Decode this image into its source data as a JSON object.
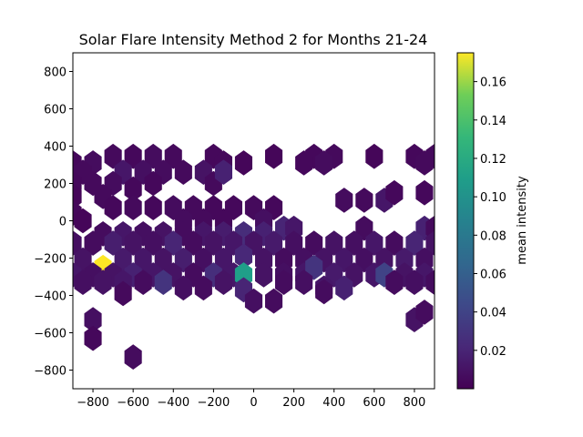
{
  "chart_data": {
    "type": "heatmap",
    "subtype": "hexbin",
    "title": "Solar Flare Intensity Method 2 for Months 21-24",
    "xlabel": "",
    "ylabel": "",
    "xlim": [
      -900,
      900
    ],
    "ylim": [
      -900,
      900
    ],
    "xticks": [
      -800,
      -600,
      -400,
      -200,
      0,
      200,
      400,
      600,
      800
    ],
    "yticks": [
      -800,
      -600,
      -400,
      -200,
      0,
      200,
      400,
      600,
      800
    ],
    "grid": false,
    "colormap": "viridis",
    "colorbar": {
      "label": "mean intensity",
      "min": 0.0,
      "max": 0.175,
      "ticks": [
        0.02,
        0.04,
        0.06,
        0.08,
        0.1,
        0.12,
        0.14,
        0.16
      ],
      "tick_labels": [
        "0.02",
        "0.04",
        "0.06",
        "0.08",
        "0.10",
        "0.12",
        "0.14",
        "0.16"
      ]
    },
    "hex_size": 50,
    "cells": [
      [
        -900,
        310,
        0.004
      ],
      [
        -800,
        310,
        0.006
      ],
      [
        -700,
        345,
        0.005
      ],
      [
        -600,
        345,
        0.004
      ],
      [
        -500,
        345,
        0.006
      ],
      [
        -400,
        345,
        0.005
      ],
      [
        -200,
        345,
        0.004
      ],
      [
        100,
        345,
        0.003
      ],
      [
        300,
        345,
        0.004
      ],
      [
        400,
        345,
        0.005
      ],
      [
        600,
        345,
        0.003
      ],
      [
        800,
        345,
        0.004
      ],
      [
        900,
        345,
        0.005
      ],
      [
        -850,
        260,
        0.005
      ],
      [
        -650,
        260,
        0.012
      ],
      [
        -550,
        260,
        0.008
      ],
      [
        -450,
        260,
        0.006
      ],
      [
        -350,
        260,
        0.005
      ],
      [
        -250,
        260,
        0.01
      ],
      [
        -150,
        310,
        0.004
      ],
      [
        -50,
        310,
        0.003
      ],
      [
        250,
        310,
        0.004
      ],
      [
        350,
        310,
        0.006
      ],
      [
        850,
        310,
        0.005
      ],
      [
        -900,
        200,
        0.004
      ],
      [
        -800,
        200,
        0.005
      ],
      [
        -700,
        200,
        0.006
      ],
      [
        -600,
        170,
        0.004
      ],
      [
        -500,
        200,
        0.004
      ],
      [
        -200,
        200,
        0.005
      ],
      [
        -150,
        260,
        0.018
      ],
      [
        -900,
        130,
        0.003
      ],
      [
        -750,
        130,
        0.005
      ],
      [
        450,
        110,
        0.006
      ],
      [
        550,
        110,
        0.005
      ],
      [
        650,
        110,
        0.012
      ],
      [
        700,
        150,
        0.004
      ],
      [
        850,
        150,
        0.004
      ],
      [
        -900,
        40,
        0.004
      ],
      [
        -700,
        70,
        0.004
      ],
      [
        -600,
        70,
        0.005
      ],
      [
        -500,
        70,
        0.004
      ],
      [
        -400,
        70,
        0.006
      ],
      [
        -300,
        70,
        0.005
      ],
      [
        -200,
        70,
        0.004
      ],
      [
        -100,
        70,
        0.004
      ],
      [
        0,
        70,
        0.005
      ],
      [
        100,
        70,
        0.004
      ],
      [
        -850,
        0,
        0.003
      ],
      [
        -350,
        0,
        0.006
      ],
      [
        -250,
        0,
        0.005
      ],
      [
        -150,
        0,
        0.004
      ],
      [
        50,
        0,
        0.008
      ],
      [
        -750,
        -70,
        0.006
      ],
      [
        -650,
        -70,
        0.012
      ],
      [
        -550,
        -70,
        0.008
      ],
      [
        -450,
        -70,
        0.01
      ],
      [
        -350,
        -70,
        0.006
      ],
      [
        -250,
        -70,
        0.012
      ],
      [
        -150,
        -70,
        0.015
      ],
      [
        -50,
        -70,
        0.025
      ],
      [
        50,
        -70,
        0.018
      ],
      [
        150,
        -40,
        0.02
      ],
      [
        200,
        -40,
        0.012
      ],
      [
        550,
        -40,
        0.006
      ],
      [
        850,
        -40,
        0.018
      ],
      [
        900,
        -40,
        0.005
      ],
      [
        -900,
        -120,
        0.008
      ],
      [
        -800,
        -120,
        0.006
      ],
      [
        -700,
        -120,
        0.016
      ],
      [
        -600,
        -120,
        0.01
      ],
      [
        -500,
        -120,
        0.008
      ],
      [
        -400,
        -120,
        0.02
      ],
      [
        -300,
        -120,
        0.006
      ],
      [
        -200,
        -120,
        0.01
      ],
      [
        -100,
        -120,
        0.012
      ],
      [
        0,
        -120,
        0.01
      ],
      [
        100,
        -120,
        0.014
      ],
      [
        200,
        -120,
        0.008
      ],
      [
        300,
        -120,
        0.006
      ],
      [
        400,
        -120,
        0.01
      ],
      [
        500,
        -120,
        0.008
      ],
      [
        600,
        -120,
        0.012
      ],
      [
        700,
        -120,
        0.006
      ],
      [
        800,
        -120,
        0.02
      ],
      [
        900,
        -120,
        0.01
      ],
      [
        -850,
        -210,
        0.01
      ],
      [
        -750,
        -250,
        0.175
      ],
      [
        -650,
        -210,
        0.014
      ],
      [
        -550,
        -210,
        0.012
      ],
      [
        -450,
        -210,
        0.01
      ],
      [
        -350,
        -210,
        0.016
      ],
      [
        -250,
        -210,
        0.008
      ],
      [
        -150,
        -210,
        0.012
      ],
      [
        -50,
        -190,
        0.022
      ],
      [
        50,
        -210,
        0.01
      ],
      [
        150,
        -210,
        0.006
      ],
      [
        250,
        -210,
        0.008
      ],
      [
        350,
        -210,
        0.01
      ],
      [
        450,
        -210,
        0.012
      ],
      [
        550,
        -210,
        0.008
      ],
      [
        650,
        -210,
        0.01
      ],
      [
        750,
        -210,
        0.014
      ],
      [
        850,
        -210,
        0.008
      ],
      [
        -900,
        -290,
        0.012
      ],
      [
        -800,
        -290,
        0.008
      ],
      [
        -700,
        -290,
        0.01
      ],
      [
        -600,
        -290,
        0.018
      ],
      [
        -500,
        -290,
        0.012
      ],
      [
        -400,
        -290,
        0.01
      ],
      [
        -300,
        -290,
        0.006
      ],
      [
        -200,
        -290,
        0.026
      ],
      [
        -100,
        -290,
        0.012
      ],
      [
        -50,
        -290,
        0.11
      ],
      [
        50,
        -290,
        0.01
      ],
      [
        150,
        -290,
        0.008
      ],
      [
        250,
        -290,
        0.012
      ],
      [
        300,
        -250,
        0.03
      ],
      [
        400,
        -290,
        0.014
      ],
      [
        500,
        -290,
        0.01
      ],
      [
        600,
        -290,
        0.012
      ],
      [
        650,
        -290,
        0.04
      ],
      [
        750,
        -290,
        0.01
      ],
      [
        850,
        -290,
        0.012
      ],
      [
        -850,
        -330,
        0.008
      ],
      [
        -750,
        -330,
        0.01
      ],
      [
        -650,
        -330,
        0.012
      ],
      [
        -550,
        -330,
        0.006
      ],
      [
        -450,
        -330,
        0.03
      ],
      [
        -350,
        -360,
        0.008
      ],
      [
        -250,
        -360,
        0.006
      ],
      [
        -150,
        -330,
        0.01
      ],
      [
        -50,
        -370,
        0.02
      ],
      [
        150,
        -330,
        0.006
      ],
      [
        250,
        -330,
        0.008
      ],
      [
        350,
        -360,
        0.012
      ],
      [
        450,
        -360,
        0.018
      ],
      [
        700,
        -330,
        0.006
      ],
      [
        800,
        -330,
        0.008
      ],
      [
        900,
        -330,
        0.006
      ],
      [
        -650,
        -390,
        0.005
      ],
      [
        0,
        -430,
        0.008
      ],
      [
        100,
        -430,
        0.006
      ],
      [
        350,
        -380,
        0.006
      ],
      [
        -800,
        -530,
        0.008
      ],
      [
        800,
        -530,
        0.01
      ],
      [
        850,
        -490,
        0.006
      ],
      [
        -800,
        -630,
        0.004
      ],
      [
        -600,
        -730,
        0.006
      ]
    ]
  }
}
